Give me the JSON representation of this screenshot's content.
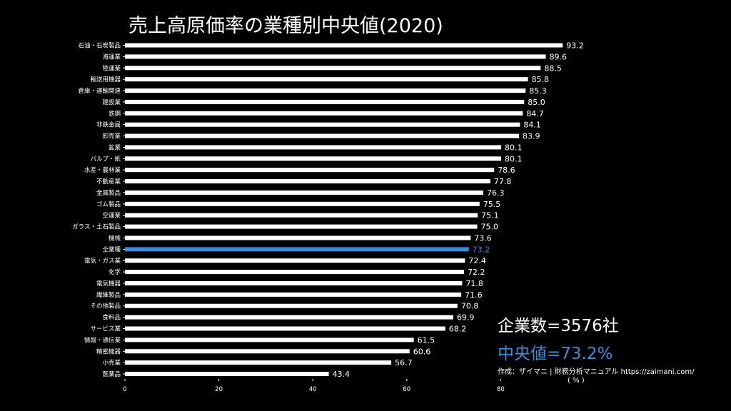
{
  "title": "売上高原価率の業種別中央値(2020)",
  "info": {
    "count_text": "企業数=3576社",
    "median_text": "中央値=73.2%",
    "credit": "作成：ザイマニ | 財務分析マニュアル https://zaimani.com/"
  },
  "colors": {
    "bar": "#ffffff",
    "highlight": "#2f8fe0",
    "background": "#000000"
  },
  "chart_data": {
    "type": "bar",
    "orientation": "horizontal",
    "categories": [
      "石油・石炭製品",
      "海運業",
      "陸運業",
      "輸送用機器",
      "倉庫・運輸関連",
      "建設業",
      "鉄鋼",
      "非鉄金属",
      "卸売業",
      "鉱業",
      "パルプ・紙",
      "水産・農林業",
      "不動産業",
      "金属製品",
      "ゴム製品",
      "空運業",
      "ガラス・土石製品",
      "機械",
      "全業種",
      "電気・ガス業",
      "化学",
      "電気機器",
      "繊維製品",
      "その他製品",
      "食料品",
      "サービス業",
      "情報・通信業",
      "精密機器",
      "小売業",
      "医薬品"
    ],
    "values": [
      93.2,
      89.6,
      88.5,
      85.8,
      85.3,
      85.0,
      84.7,
      84.1,
      83.9,
      80.1,
      80.1,
      78.6,
      77.8,
      76.3,
      75.5,
      75.1,
      75.0,
      73.6,
      73.2,
      72.4,
      72.2,
      71.8,
      71.6,
      70.8,
      69.9,
      68.2,
      61.5,
      60.6,
      56.7,
      43.4
    ],
    "value_labels": [
      "93.2",
      "89.6",
      "88.5",
      "85.8",
      "85.3",
      "85.0",
      "84.7",
      "84.1",
      "83.9",
      "80.1",
      "80.1",
      "78.6",
      "77.8",
      "76.3",
      "75.5",
      "75.1",
      "75.0",
      "73.6",
      "73.2",
      "72.4",
      "72.2",
      "71.8",
      "71.6",
      "70.8",
      "69.9",
      "68.2",
      "61.5",
      "60.6",
      "56.7",
      "43.4"
    ],
    "highlight_category": "全業種",
    "x_ticks": [
      0,
      20,
      40,
      60,
      80
    ],
    "xlim": [
      0,
      100
    ],
    "xlabel": "( % )",
    "grid": false
  }
}
